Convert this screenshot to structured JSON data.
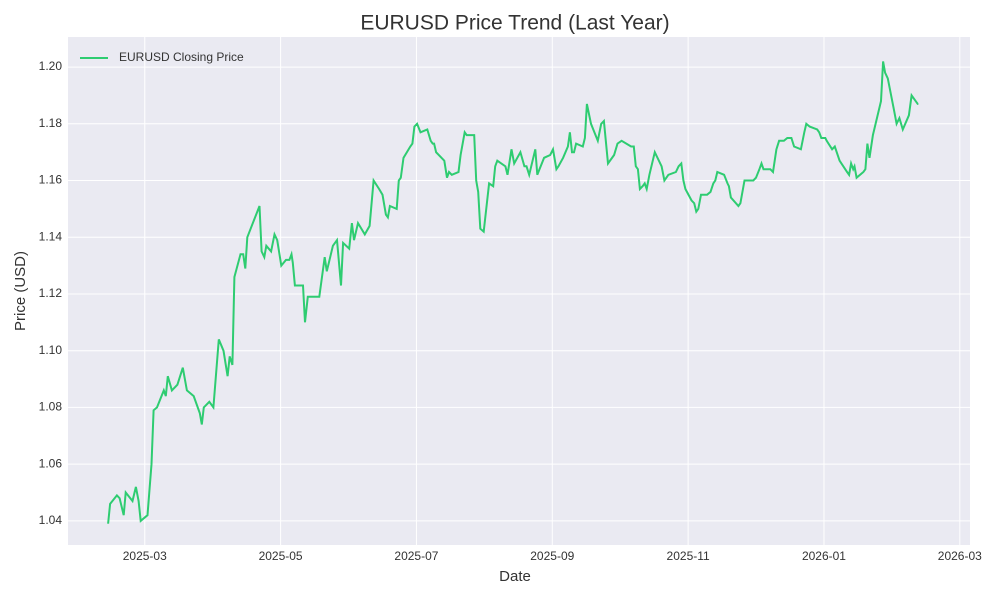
{
  "chart_data": {
    "type": "line",
    "title": "EURUSD Price Trend (Last Year)",
    "x_label": "Date",
    "y_label": "Price (USD)",
    "x": [
      2.46,
      2.49,
      2.59,
      2.63,
      2.69,
      2.72,
      2.82,
      2.87,
      2.91,
      2.94,
      3.04,
      3.1,
      3.13,
      3.18,
      3.28,
      3.31,
      3.34,
      3.4,
      3.48,
      3.56,
      3.62,
      3.72,
      3.81,
      3.84,
      3.87,
      3.95,
      4.01,
      4.09,
      4.16,
      4.22,
      4.25,
      4.29,
      4.32,
      4.41,
      4.45,
      4.48,
      4.51,
      4.69,
      4.72,
      4.76,
      4.79,
      4.86,
      4.91,
      4.95,
      5.01,
      5.08,
      5.13,
      5.16,
      5.18,
      5.21,
      5.33,
      5.36,
      5.4,
      5.46,
      5.57,
      5.65,
      5.68,
      5.77,
      5.83,
      5.89,
      5.92,
      6.01,
      6.05,
      6.08,
      6.14,
      6.24,
      6.31,
      6.37,
      6.45,
      6.5,
      6.55,
      6.58,
      6.61,
      6.71,
      6.74,
      6.77,
      6.81,
      6.91,
      6.94,
      6.97,
      7.01,
      7.06,
      7.16,
      7.21,
      7.24,
      7.26,
      7.29,
      7.41,
      7.45,
      7.48,
      7.52,
      7.62,
      7.65,
      7.71,
      7.74,
      7.85,
      7.88,
      7.91,
      7.94,
      7.99,
      8.07,
      8.13,
      8.16,
      8.19,
      8.31,
      8.34,
      8.4,
      8.44,
      8.53,
      8.59,
      8.62,
      8.66,
      8.75,
      8.78,
      8.88,
      8.97,
      9.01,
      9.06,
      9.09,
      9.16,
      9.23,
      9.26,
      9.29,
      9.32,
      9.35,
      9.45,
      9.48,
      9.51,
      9.57,
      9.67,
      9.72,
      9.76,
      9.82,
      9.91,
      9.96,
      10.02,
      10.16,
      10.2,
      10.23,
      10.26,
      10.29,
      10.33,
      10.36,
      10.39,
      10.43,
      10.51,
      10.61,
      10.65,
      10.71,
      10.82,
      10.86,
      10.9,
      10.93,
      10.96,
      11.05,
      11.09,
      11.12,
      11.15,
      11.19,
      11.28,
      11.33,
      11.37,
      11.4,
      11.43,
      11.53,
      11.58,
      11.6,
      11.63,
      11.74,
      11.77,
      11.83,
      11.96,
      12.0,
      12.05,
      12.08,
      12.11,
      12.21,
      12.25,
      12.3,
      12.34,
      12.41,
      12.46,
      12.52,
      12.56,
      12.66,
      12.71,
      12.74,
      12.79,
      12.9,
      12.93,
      12.96,
      13.02,
      13.04,
      13.12,
      13.16,
      13.23,
      13.34,
      13.37,
      13.4,
      13.43,
      13.45,
      13.48,
      13.58,
      13.61,
      13.64,
      13.67,
      13.72,
      13.84,
      13.87,
      13.9,
      13.94,
      14.03,
      14.07,
      14.11,
      14.16,
      14.25,
      14.29,
      14.38,
      14.39
    ],
    "series": [
      {
        "name": "EURUSD Closing Price",
        "color": "#2ecc71",
        "values": [
          1.039,
          1.046,
          1.049,
          1.048,
          1.042,
          1.05,
          1.047,
          1.052,
          1.047,
          1.04,
          1.042,
          1.06,
          1.079,
          1.08,
          1.086,
          1.084,
          1.091,
          1.086,
          1.088,
          1.094,
          1.086,
          1.084,
          1.078,
          1.074,
          1.08,
          1.082,
          1.08,
          1.104,
          1.1,
          1.091,
          1.098,
          1.095,
          1.126,
          1.134,
          1.134,
          1.129,
          1.14,
          1.151,
          1.135,
          1.133,
          1.137,
          1.135,
          1.141,
          1.139,
          1.13,
          1.132,
          1.132,
          1.134,
          1.131,
          1.123,
          1.123,
          1.11,
          1.119,
          1.119,
          1.119,
          1.133,
          1.128,
          1.137,
          1.139,
          1.123,
          1.138,
          1.136,
          1.145,
          1.139,
          1.145,
          1.141,
          1.144,
          1.16,
          1.157,
          1.155,
          1.148,
          1.147,
          1.151,
          1.15,
          1.16,
          1.161,
          1.168,
          1.172,
          1.173,
          1.179,
          1.18,
          1.177,
          1.178,
          1.174,
          1.173,
          1.173,
          1.17,
          1.167,
          1.161,
          1.163,
          1.162,
          1.163,
          1.169,
          1.177,
          1.176,
          1.176,
          1.16,
          1.156,
          1.143,
          1.142,
          1.159,
          1.158,
          1.165,
          1.167,
          1.165,
          1.162,
          1.171,
          1.166,
          1.17,
          1.165,
          1.165,
          1.162,
          1.171,
          1.162,
          1.168,
          1.169,
          1.171,
          1.164,
          1.165,
          1.168,
          1.172,
          1.177,
          1.17,
          1.17,
          1.173,
          1.172,
          1.175,
          1.187,
          1.18,
          1.174,
          1.18,
          1.181,
          1.166,
          1.169,
          1.173,
          1.174,
          1.172,
          1.172,
          1.165,
          1.164,
          1.157,
          1.158,
          1.159,
          1.157,
          1.162,
          1.17,
          1.165,
          1.16,
          1.162,
          1.163,
          1.165,
          1.166,
          1.16,
          1.157,
          1.153,
          1.152,
          1.149,
          1.15,
          1.155,
          1.155,
          1.156,
          1.159,
          1.16,
          1.163,
          1.162,
          1.159,
          1.158,
          1.154,
          1.151,
          1.152,
          1.16,
          1.16,
          1.161,
          1.164,
          1.166,
          1.164,
          1.164,
          1.163,
          1.171,
          1.174,
          1.174,
          1.175,
          1.175,
          1.172,
          1.171,
          1.177,
          1.18,
          1.179,
          1.178,
          1.177,
          1.175,
          1.175,
          1.174,
          1.171,
          1.172,
          1.167,
          1.163,
          1.162,
          1.166,
          1.164,
          1.165,
          1.161,
          1.163,
          1.164,
          1.173,
          1.168,
          1.176,
          1.188,
          1.202,
          1.198,
          1.196,
          1.185,
          1.18,
          1.182,
          1.178,
          1.183,
          1.19,
          1.187,
          1.187
        ]
      }
    ],
    "xlim": [
      1.87,
      15.15
    ],
    "xticks": [
      {
        "value": 3,
        "label": "2025-03"
      },
      {
        "value": 5,
        "label": "2025-05"
      },
      {
        "value": 7,
        "label": "2025-07"
      },
      {
        "value": 9,
        "label": "2025-09"
      },
      {
        "value": 11,
        "label": "2025-11"
      },
      {
        "value": 13,
        "label": "2026-01"
      },
      {
        "value": 15,
        "label": "2026-03"
      }
    ],
    "ylim": [
      1.0315,
      1.2106
    ],
    "yticks": [
      1.04,
      1.06,
      1.08,
      {
        "value": 1.1,
        "label": "1.10"
      },
      1.12,
      1.14,
      1.16,
      1.18,
      {
        "value": 1.2,
        "label": "1.20"
      }
    ],
    "grid": true,
    "legend": "upper left"
  }
}
